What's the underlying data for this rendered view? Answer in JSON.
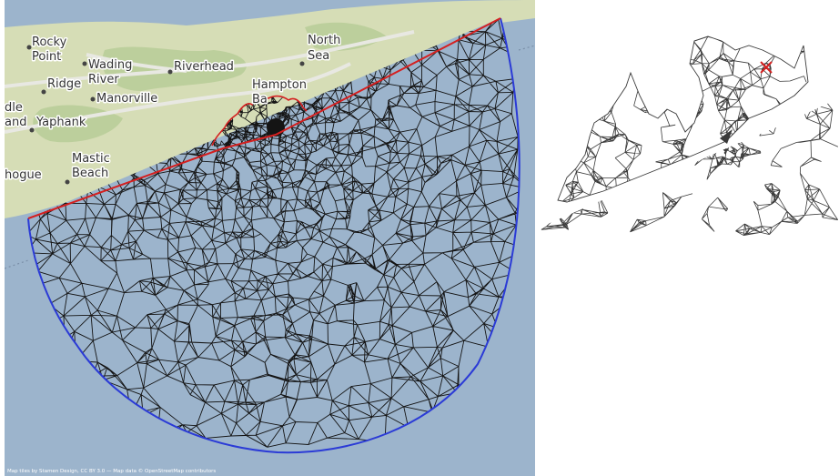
{
  "map": {
    "place_labels": [
      {
        "id": "rocky-point",
        "lines": [
          "Rocky",
          "Point"
        ]
      },
      {
        "id": "wading-river",
        "lines": [
          "Wading",
          "River"
        ]
      },
      {
        "id": "riverhead",
        "lines": [
          "Riverhead"
        ]
      },
      {
        "id": "north-sea",
        "lines": [
          "North",
          "Sea"
        ]
      },
      {
        "id": "ridge",
        "lines": [
          "Ridge"
        ]
      },
      {
        "id": "manorville",
        "lines": [
          "Manorville"
        ]
      },
      {
        "id": "hampton-bays",
        "lines": [
          "Hampton",
          "Ba"
        ]
      },
      {
        "id": "middle-island",
        "lines": [
          "dle",
          "and"
        ]
      },
      {
        "id": "yaphank",
        "lines": [
          "Yaphank"
        ]
      },
      {
        "id": "mastic-beach",
        "lines": [
          "Mastic",
          "Beach"
        ]
      },
      {
        "id": "patchogue",
        "lines": [
          "hogue"
        ]
      }
    ],
    "attribution": "Map tiles by Stamen Design, CC BY 3.0 — Map data © OpenStreetMap contributors",
    "colors": {
      "water": "#9cb4cc",
      "land": "#d6ddb6",
      "forest": "#bccf9c",
      "road": "#e8e8e2",
      "mesh": "#141414",
      "open_boundary": "#2b3bd6",
      "coast_boundary": "#d42020"
    }
  },
  "inset": {
    "colors": {
      "mesh": "#3a3a3a",
      "marker": "#d42020"
    },
    "marker_icon": "x-marker"
  }
}
